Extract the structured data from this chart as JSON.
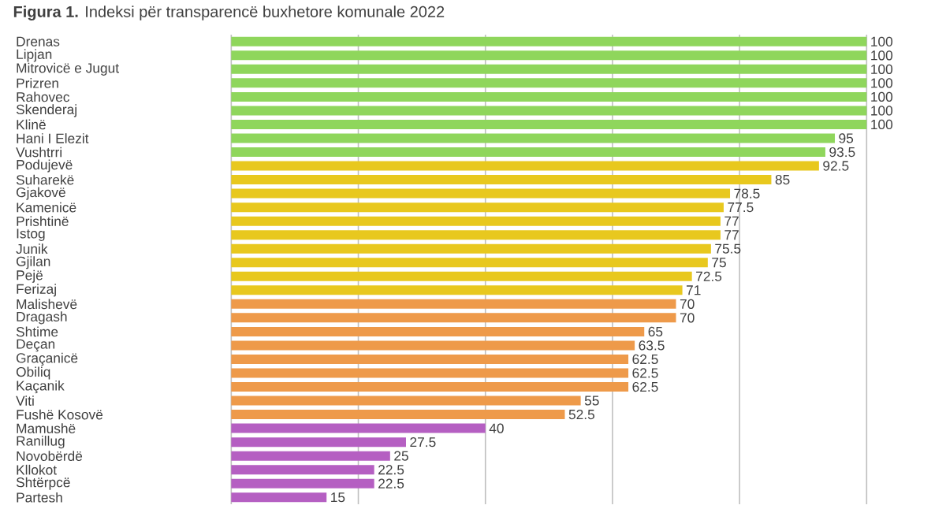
{
  "chart_data": {
    "type": "bar",
    "orientation": "horizontal",
    "title": "**Figura 1.**    Indeksi për transparencë buxhetore komunale 2022",
    "categories": [
      "Drenas",
      "Lipjan",
      "Mitrovicë e Jugut",
      "Prizren",
      "Rahovec",
      "Skenderaj",
      "Klinë",
      "Hani I Elezit",
      "Vushtrri",
      "Podujevë",
      "Suharekë",
      "Gjakovë",
      "Kamenicë",
      "Prishtinë",
      "Istog",
      "Junik",
      "Gjilan",
      "Pejë",
      "Ferizaj",
      "Malishevë",
      "Dragash",
      "Shtime",
      "Deçan",
      "Graçanicë",
      "Obiliq",
      "Kaçanik",
      "Viti",
      "Fushë Kosovë",
      "Mamushë",
      "Ranillug",
      "Novobërdë",
      "Kllokot",
      "Shtërpcë",
      "Partesh"
    ],
    "values": [
      100,
      100,
      100,
      100,
      100,
      100,
      100,
      95,
      93.5,
      92.5,
      85,
      78.5,
      77.5,
      77,
      77,
      75.5,
      75,
      72.5,
      71,
      70,
      70,
      65,
      63.5,
      62.5,
      62.5,
      62.5,
      55,
      52.5,
      40,
      27.5,
      25,
      22.5,
      22.5,
      15
    ],
    "colors": [
      "#8fd65c",
      "#8fd65c",
      "#8fd65c",
      "#8fd65c",
      "#8fd65c",
      "#8fd65c",
      "#8fd65c",
      "#8fd65c",
      "#8fd65c",
      "#e8c81e",
      "#e8c81e",
      "#e8c81e",
      "#e8c81e",
      "#e8c81e",
      "#e8c81e",
      "#e8c81e",
      "#e8c81e",
      "#e8c81e",
      "#e8c81e",
      "#ee9a4a",
      "#ee9a4a",
      "#ee9a4a",
      "#ee9a4a",
      "#ee9a4a",
      "#ee9a4a",
      "#ee9a4a",
      "#ee9a4a",
      "#ee9a4a",
      "#b55fc2",
      "#b55fc2",
      "#b55fc2",
      "#b55fc2",
      "#b55fc2",
      "#b55fc2"
    ],
    "xlim": [
      0,
      100
    ],
    "xticks": [
      {
        "value": 0,
        "label": null
      },
      {
        "value": 20,
        "label": null
      },
      {
        "value": 40,
        "label": null
      },
      {
        "value": 60,
        "label": null
      },
      {
        "value": 80,
        "label": null
      },
      {
        "value": 100,
        "label": null
      }
    ],
    "grid": "x",
    "data_labels": true,
    "tick_labels": "y"
  }
}
